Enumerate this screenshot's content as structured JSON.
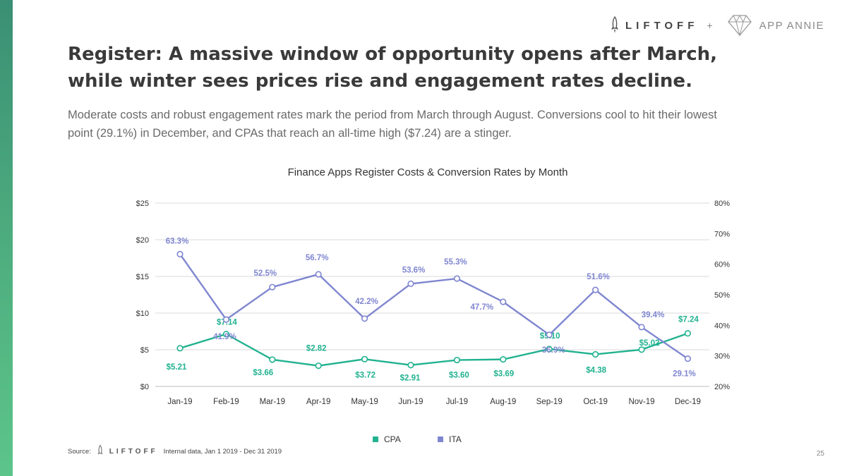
{
  "header": {
    "liftoff_logo": "LIFTOFF",
    "plus": "+",
    "appannie_logo": "APP ANNIE"
  },
  "slide": {
    "title": "Register: A massive window of opportunity opens after March, while winter sees prices rise and engagement rates decline.",
    "subtitle": "Moderate costs and robust engagement rates mark the period from March through August. Conversions cool to hit their lowest point (29.1%) in December, and CPAs that reach an all-time high ($7.24) are a stinger."
  },
  "footer": {
    "source_label": "Source:",
    "source_logo": "LIFTOFF",
    "source_text": "Internal data, Jan 1 2019 - Dec 31 2019",
    "page_number": "25"
  },
  "colors": {
    "cpa": "#21b290",
    "ita": "#7f86d0",
    "grid": "#d9d9d9",
    "axis_text": "#333333"
  },
  "chart_data": {
    "type": "line",
    "title": "Finance Apps Register Costs & Conversion Rates by Month",
    "categories": [
      "Jan-19",
      "Feb-19",
      "Mar-19",
      "Apr-19",
      "May-19",
      "Jun-19",
      "Jul-19",
      "Aug-19",
      "Sep-19",
      "Oct-19",
      "Nov-19",
      "Dec-19"
    ],
    "y_left": {
      "ticks": [
        "$0",
        "$5",
        "$10",
        "$15",
        "$20",
        "$25"
      ],
      "ylim": [
        0,
        25
      ]
    },
    "y_right": {
      "ticks": [
        "20%",
        "30%",
        "40%",
        "50%",
        "60%",
        "70%",
        "80%"
      ],
      "ylim": [
        20,
        80
      ]
    },
    "grid": true,
    "legend_position": "bottom",
    "series": [
      {
        "name": "CPA",
        "axis": "left",
        "values": [
          5.21,
          7.14,
          3.66,
          2.82,
          3.72,
          2.91,
          3.6,
          3.69,
          5.1,
          4.38,
          5.02,
          7.24
        ],
        "labels": [
          "$5.21",
          "$7.14",
          "$3.66",
          "$2.82",
          "$3.72",
          "$2.91",
          "$3.60",
          "$3.69",
          "$5.10",
          "$4.38",
          "$5.02",
          "$7.24"
        ]
      },
      {
        "name": "ITA",
        "axis": "right",
        "values": [
          63.3,
          41.9,
          52.5,
          56.7,
          42.2,
          53.6,
          55.3,
          47.7,
          36.9,
          51.6,
          39.4,
          29.1
        ],
        "labels": [
          "63.3%",
          "41.9%",
          "52.5%",
          "56.7%",
          "42.2%",
          "53.6%",
          "55.3%",
          "47.7%",
          "36.9%",
          "51.6%",
          "39.4%",
          "29.1%"
        ]
      }
    ]
  }
}
